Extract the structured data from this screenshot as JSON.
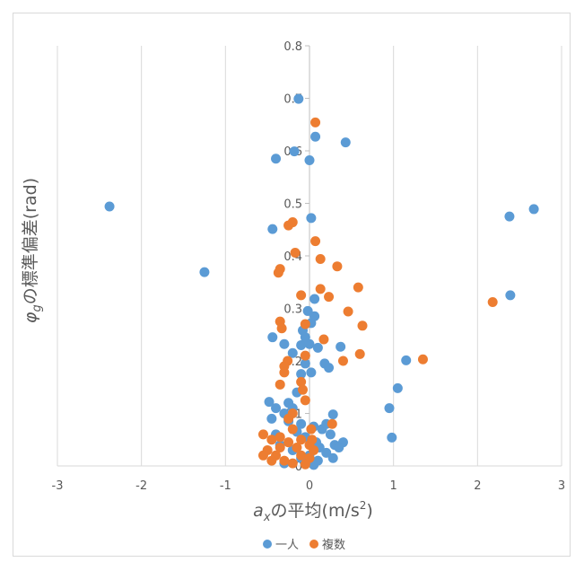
{
  "chart_data": {
    "type": "scatter",
    "title": "",
    "xlabel": {
      "base": "a",
      "sub": "x",
      "rest": "の平均(m/s",
      "sup": "2",
      "end": ")"
    },
    "ylabel": {
      "base": "φ",
      "sub": "g",
      "rest": "の標準偏差(rad)"
    },
    "xlim": [
      -3,
      3
    ],
    "ylim": [
      0,
      0.8
    ],
    "x_ticks": [
      "-3",
      "-2",
      "-1",
      "0",
      "1",
      "2",
      "3"
    ],
    "y_ticks": [
      "0",
      "0.1",
      "0.2",
      "0.3",
      "0.4",
      "0.5",
      "0.6",
      "0.7",
      "0.8"
    ],
    "grid": "vertical",
    "legend_position": "bottom",
    "series": [
      {
        "name": "一人",
        "color": "#5B9BD5",
        "points": [
          [
            -2.38,
            0.494
          ],
          [
            -1.25,
            0.369
          ],
          [
            2.38,
            0.475
          ],
          [
            2.67,
            0.489
          ],
          [
            2.39,
            0.325
          ],
          [
            1.15,
            0.201
          ],
          [
            1.05,
            0.148
          ],
          [
            0.95,
            0.11
          ],
          [
            0.98,
            0.054
          ],
          [
            -0.13,
            0.699
          ],
          [
            0.07,
            0.627
          ],
          [
            0.43,
            0.616
          ],
          [
            -0.18,
            0.599
          ],
          [
            -0.4,
            0.585
          ],
          [
            0.0,
            0.582
          ],
          [
            0.02,
            0.472
          ],
          [
            -0.44,
            0.451
          ],
          [
            0.06,
            0.318
          ],
          [
            -0.02,
            0.295
          ],
          [
            0.02,
            0.272
          ],
          [
            -0.08,
            0.258
          ],
          [
            -0.44,
            0.245
          ],
          [
            -0.3,
            0.232
          ],
          [
            -0.1,
            0.23
          ],
          [
            0.0,
            0.232
          ],
          [
            0.1,
            0.225
          ],
          [
            0.37,
            0.227
          ],
          [
            -0.2,
            0.215
          ],
          [
            0.18,
            0.195
          ],
          [
            0.23,
            0.187
          ],
          [
            -0.1,
            0.175
          ],
          [
            0.02,
            0.178
          ],
          [
            -0.05,
            0.195
          ],
          [
            -0.15,
            0.14
          ],
          [
            -0.25,
            0.12
          ],
          [
            -0.48,
            0.122
          ],
          [
            -0.4,
            0.11
          ],
          [
            -0.45,
            0.09
          ],
          [
            -0.3,
            0.1
          ],
          [
            -0.2,
            0.11
          ],
          [
            0.28,
            0.098
          ],
          [
            -0.1,
            0.08
          ],
          [
            0.05,
            0.075
          ],
          [
            0.15,
            0.07
          ],
          [
            0.25,
            0.06
          ],
          [
            -0.05,
            0.055
          ],
          [
            0.08,
            0.045
          ],
          [
            0.3,
            0.04
          ],
          [
            0.4,
            0.045
          ],
          [
            0.35,
            0.035
          ],
          [
            -0.35,
            0.04
          ],
          [
            -0.2,
            0.03
          ],
          [
            0.0,
            0.02
          ],
          [
            0.1,
            0.01
          ],
          [
            0.2,
            0.025
          ],
          [
            -0.1,
            0.015
          ],
          [
            -0.3,
            0.005
          ],
          [
            0.05,
            0.002
          ],
          [
            -0.4,
            0.06
          ],
          [
            -0.15,
            0.065
          ],
          [
            0.2,
            0.08
          ],
          [
            -0.25,
            0.085
          ],
          [
            0.12,
            0.035
          ],
          [
            0.28,
            0.015
          ],
          [
            -0.05,
            0.245
          ],
          [
            0.06,
            0.285
          ]
        ]
      },
      {
        "name": "複数",
        "color": "#ED7D31",
        "points": [
          [
            0.07,
            0.654
          ],
          [
            -0.2,
            0.464
          ],
          [
            -0.25,
            0.458
          ],
          [
            0.07,
            0.428
          ],
          [
            -0.17,
            0.406
          ],
          [
            0.13,
            0.394
          ],
          [
            0.33,
            0.38
          ],
          [
            -0.35,
            0.375
          ],
          [
            -0.37,
            0.368
          ],
          [
            0.58,
            0.34
          ],
          [
            0.13,
            0.337
          ],
          [
            0.23,
            0.322
          ],
          [
            -0.1,
            0.325
          ],
          [
            2.18,
            0.312
          ],
          [
            0.46,
            0.294
          ],
          [
            0.63,
            0.267
          ],
          [
            -0.35,
            0.275
          ],
          [
            -0.05,
            0.27
          ],
          [
            -0.33,
            0.262
          ],
          [
            0.17,
            0.241
          ],
          [
            1.35,
            0.203
          ],
          [
            0.4,
            0.2
          ],
          [
            0.6,
            0.213
          ],
          [
            -0.05,
            0.21
          ],
          [
            -0.26,
            0.2
          ],
          [
            -0.3,
            0.19
          ],
          [
            -0.3,
            0.178
          ],
          [
            -0.1,
            0.16
          ],
          [
            -0.35,
            0.155
          ],
          [
            -0.08,
            0.145
          ],
          [
            -0.05,
            0.125
          ],
          [
            -0.2,
            0.1
          ],
          [
            -0.25,
            0.09
          ],
          [
            0.27,
            0.08
          ],
          [
            -0.55,
            0.06
          ],
          [
            -0.45,
            0.05
          ],
          [
            -0.35,
            0.055
          ],
          [
            -0.2,
            0.07
          ],
          [
            -0.1,
            0.05
          ],
          [
            0.0,
            0.04
          ],
          [
            -0.5,
            0.03
          ],
          [
            -0.4,
            0.02
          ],
          [
            -0.3,
            0.01
          ],
          [
            -0.2,
            0.005
          ],
          [
            -0.1,
            0.02
          ],
          [
            0.0,
            0.015
          ],
          [
            0.05,
            0.03
          ],
          [
            -0.45,
            0.01
          ],
          [
            -0.35,
            0.035
          ],
          [
            0.03,
            0.05
          ],
          [
            -0.15,
            0.035
          ],
          [
            -0.05,
            0.003
          ],
          [
            0.02,
            0.07
          ],
          [
            -0.55,
            0.02
          ],
          [
            -0.25,
            0.045
          ]
        ]
      }
    ]
  }
}
